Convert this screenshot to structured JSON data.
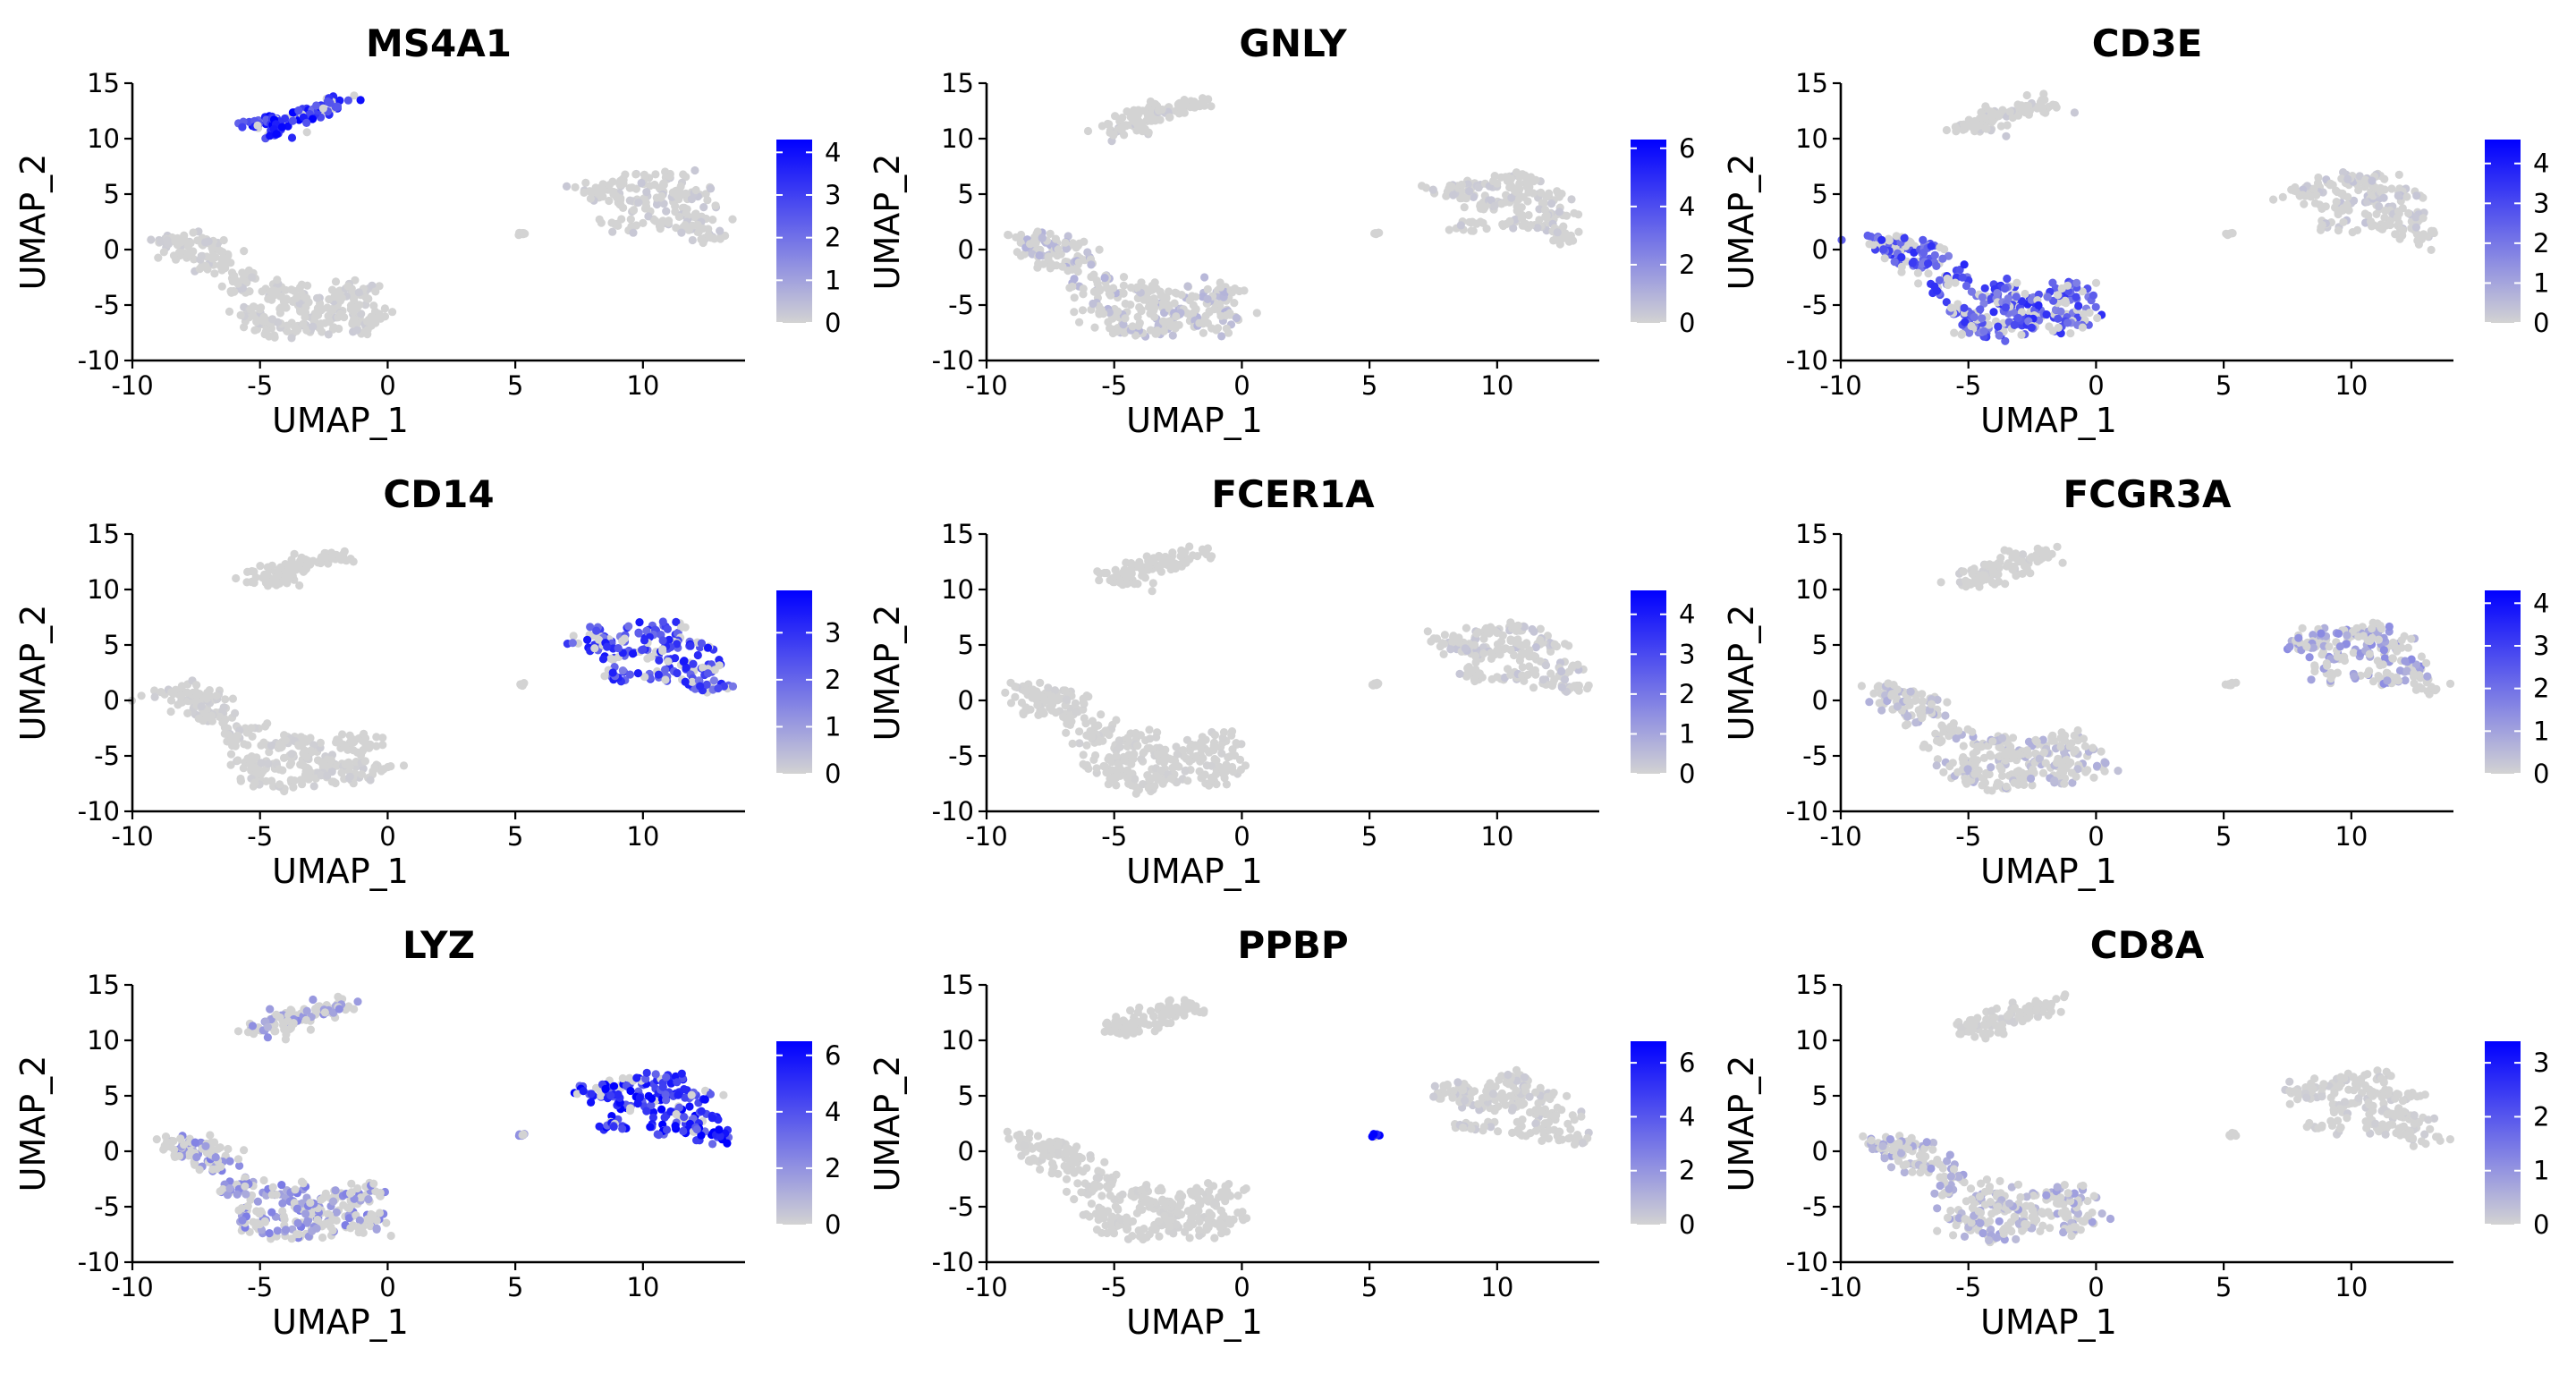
{
  "chart_data": {
    "type": "scatter",
    "description_kind": "UMAP feature plot grid",
    "xlabel": "UMAP_1",
    "ylabel": "UMAP_2",
    "xlim": [
      -10,
      14
    ],
    "ylim": [
      -10,
      15
    ],
    "xticks": [
      -10,
      -5,
      0,
      5,
      10
    ],
    "yticks": [
      -10,
      -5,
      0,
      5,
      10,
      15
    ],
    "color_low": "#d3d3d3",
    "color_high": "#0000ff",
    "clusters": [
      {
        "id": "T_main",
        "points": [
          [
            -8.5,
            0.8
          ],
          [
            -7.5,
            0.3
          ],
          [
            -6.5,
            -1
          ],
          [
            -5.5,
            -2.5
          ],
          [
            -4.5,
            -4
          ],
          [
            -3.5,
            -5
          ],
          [
            -2.5,
            -5.5
          ],
          [
            -1.5,
            -5.8
          ],
          [
            -0.5,
            -6
          ],
          [
            -1,
            -4.5
          ],
          [
            -2,
            -4
          ],
          [
            -3,
            -6.5
          ],
          [
            -4,
            -7.5
          ],
          [
            -5,
            -7
          ],
          [
            -5.5,
            -5.5
          ],
          [
            -6,
            -3.5
          ],
          [
            -7,
            -1.5
          ],
          [
            -8,
            -0.5
          ],
          [
            -3.8,
            -3.5
          ],
          [
            -2.8,
            -7
          ],
          [
            -1.2,
            -7
          ],
          [
            -0.8,
            -3.5
          ],
          [
            -4.8,
            -6
          ],
          [
            -3.2,
            -4.8
          ],
          [
            -6.8,
            0.2
          ],
          [
            -7.8,
            0.8
          ]
        ]
      },
      {
        "id": "B",
        "points": [
          [
            -5,
            11
          ],
          [
            -4,
            11.8
          ],
          [
            -3,
            12.5
          ],
          [
            -2,
            13.1
          ],
          [
            -4.5,
            11.5
          ],
          [
            -3.5,
            12.2
          ],
          [
            -2.5,
            12.8
          ],
          [
            -4.2,
            10.9
          ]
        ]
      },
      {
        "id": "Mono",
        "points": [
          [
            8,
            5.4
          ],
          [
            9,
            5.8
          ],
          [
            10,
            6.3
          ],
          [
            11,
            6.5
          ],
          [
            12,
            5
          ],
          [
            12.5,
            3
          ],
          [
            12.8,
            1.2
          ],
          [
            10.5,
            4.5
          ],
          [
            9.5,
            4
          ],
          [
            11.5,
            3.5
          ],
          [
            10.8,
            2.2
          ],
          [
            12,
            1.8
          ],
          [
            9,
            2.2
          ],
          [
            8.5,
            5
          ],
          [
            11,
            5.2
          ]
        ]
      },
      {
        "id": "Platelet",
        "points": [
          [
            5.2,
            1.4
          ],
          [
            5.3,
            1.5
          ]
        ]
      }
    ],
    "panels": [
      {
        "gene": "MS4A1",
        "colorbar": {
          "max": 4.3,
          "ticks": [
            0,
            1,
            2,
            3,
            4
          ]
        },
        "expression": {
          "T_main": 0.15,
          "B": 3.6,
          "Mono": 0.2,
          "Platelet": 0
        }
      },
      {
        "gene": "GNLY",
        "colorbar": {
          "max": 6.3,
          "ticks": [
            0,
            2,
            4,
            6
          ]
        },
        "expression": {
          "T_main": 0.8,
          "B": 0.3,
          "Mono": 0.3,
          "Platelet": 0
        }
      },
      {
        "gene": "CD3E",
        "colorbar": {
          "max": 4.6,
          "ticks": [
            0,
            1,
            2,
            3,
            4
          ]
        },
        "expression": {
          "T_main": 3.0,
          "B": 0.2,
          "Mono": 0.3,
          "Platelet": 0
        }
      },
      {
        "gene": "CD14",
        "colorbar": {
          "max": 3.9,
          "ticks": [
            0,
            1,
            2,
            3
          ]
        },
        "expression": {
          "T_main": 0.1,
          "B": 0,
          "Mono": 2.8,
          "Platelet": 0
        }
      },
      {
        "gene": "FCER1A",
        "colorbar": {
          "max": 4.6,
          "ticks": [
            0,
            1,
            2,
            3,
            4
          ]
        },
        "expression": {
          "T_main": 0.05,
          "B": 0,
          "Mono": 0.3,
          "Platelet": 0
        }
      },
      {
        "gene": "FCGR3A",
        "colorbar": {
          "max": 4.3,
          "ticks": [
            0,
            1,
            2,
            3,
            4
          ]
        },
        "expression": {
          "T_main": 0.6,
          "B": 0.1,
          "Mono": 1.2,
          "Platelet": 0
        }
      },
      {
        "gene": "LYZ",
        "colorbar": {
          "max": 6.5,
          "ticks": [
            0,
            2,
            4,
            6
          ]
        },
        "expression": {
          "T_main": 2.2,
          "B": 1.8,
          "Mono": 5.6,
          "Platelet": 2.5
        }
      },
      {
        "gene": "PPBP",
        "colorbar": {
          "max": 6.8,
          "ticks": [
            0,
            2,
            4,
            6
          ]
        },
        "expression": {
          "T_main": 0.05,
          "B": 0,
          "Mono": 0.3,
          "Platelet": 6.5
        }
      },
      {
        "gene": "CD8A",
        "colorbar": {
          "max": 3.4,
          "ticks": [
            0,
            1,
            2,
            3
          ]
        },
        "expression": {
          "T_main": 0.7,
          "B": 0.05,
          "Mono": 0.1,
          "Platelet": 0
        }
      }
    ]
  }
}
